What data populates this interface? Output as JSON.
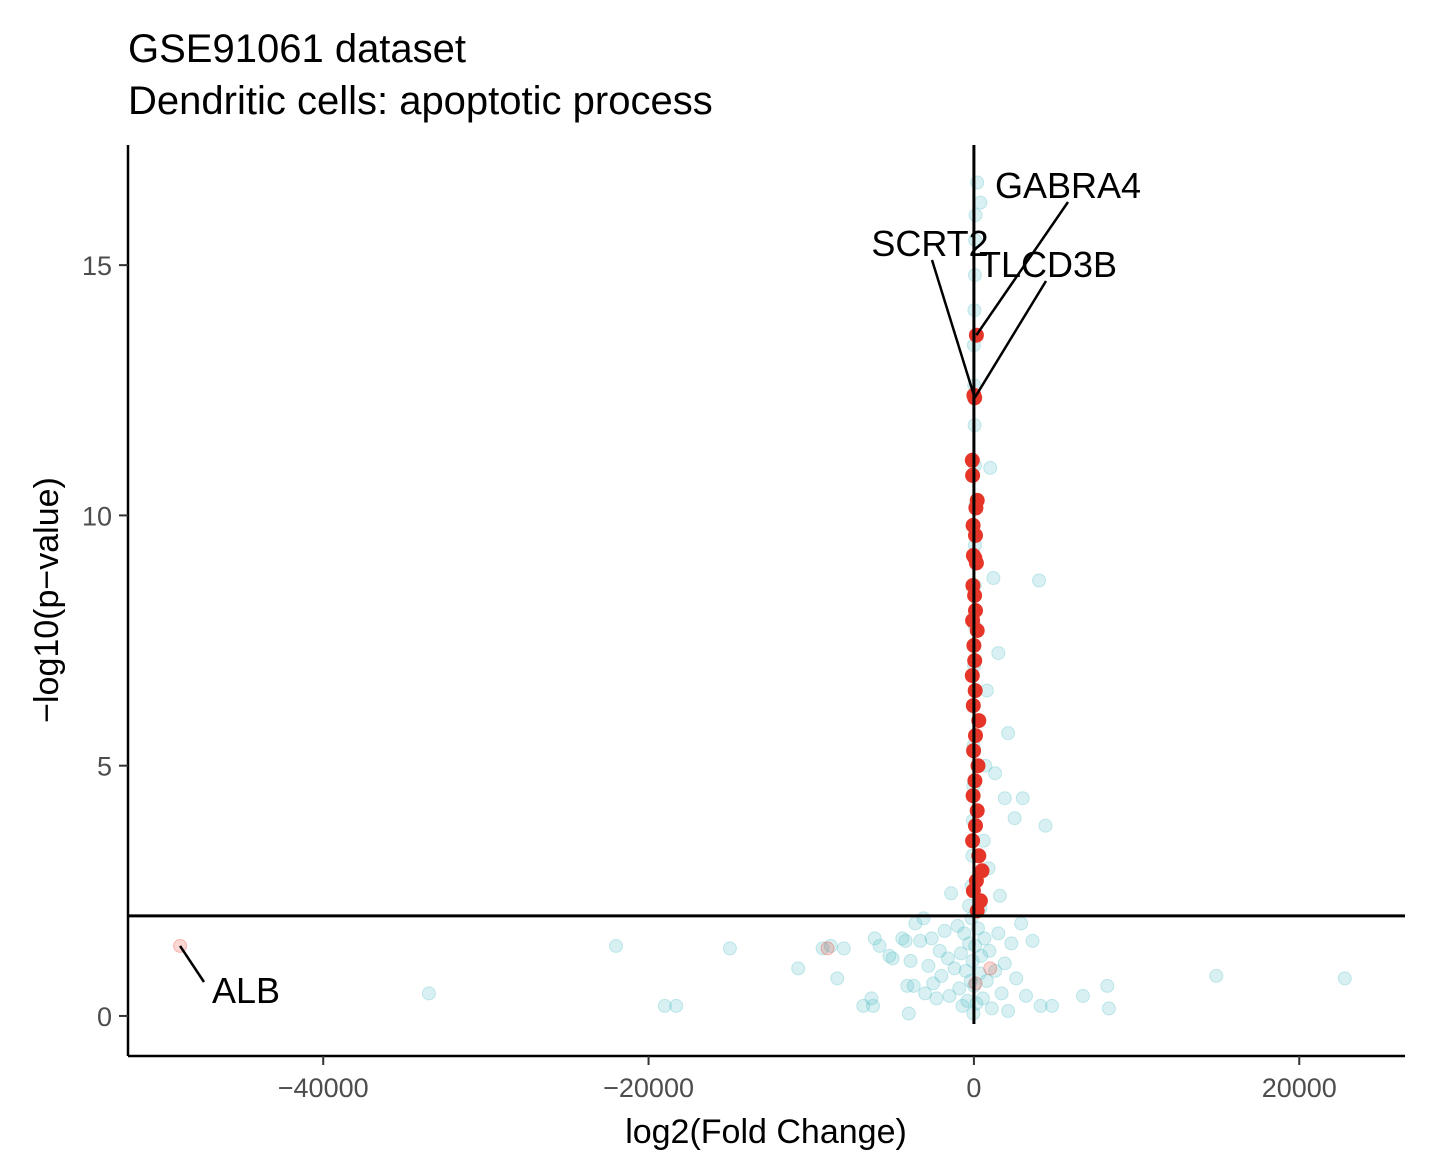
{
  "chart_data": {
    "type": "scatter",
    "title": "GSE91061 dataset",
    "subtitle": "Dendritic cells: apoptotic process",
    "xlabel": "log2(Fold Change)",
    "ylabel": "−log10(p−value)",
    "xlim": [
      -52000,
      26500
    ],
    "ylim": [
      -0.8,
      17.4
    ],
    "x_ticks": [
      -40000,
      -20000,
      0,
      20000
    ],
    "x_tick_labels": [
      "−40000",
      "−20000",
      "0",
      "20000"
    ],
    "y_ticks": [
      0,
      5,
      10,
      15
    ],
    "y_tick_labels": [
      "0",
      "5",
      "10",
      "15"
    ],
    "grid": false,
    "reference_lines": {
      "x": 0,
      "y": 2
    },
    "colors": {
      "significant": "#e53528",
      "not_significant": "#4fbcc4",
      "axis": "#000000"
    },
    "series": [
      {
        "color": "#4fbcc4",
        "points": [
          [
            -33500,
            0.45
          ],
          [
            -22000,
            1.4
          ],
          [
            -19000,
            0.2
          ],
          [
            -18300,
            0.2
          ],
          [
            -15000,
            1.35
          ],
          [
            -10800,
            0.95
          ],
          [
            -9300,
            1.35
          ],
          [
            -8800,
            1.4
          ],
          [
            -8400,
            0.75
          ],
          [
            -8000,
            1.35
          ],
          [
            -6800,
            0.2
          ],
          [
            -6300,
            0.35
          ],
          [
            -6200,
            0.2
          ],
          [
            -6100,
            1.55
          ],
          [
            -5800,
            1.4
          ],
          [
            -5200,
            1.2
          ],
          [
            -5000,
            1.15
          ],
          [
            -4400,
            1.55
          ],
          [
            -4200,
            1.5
          ],
          [
            -4100,
            0.6
          ],
          [
            -4000,
            0.05
          ],
          [
            -3900,
            1.1
          ],
          [
            -3700,
            0.6
          ],
          [
            -3600,
            1.85
          ],
          [
            -3300,
            1.5
          ],
          [
            -3100,
            1.95
          ],
          [
            -3000,
            0.45
          ],
          [
            -2800,
            1.0
          ],
          [
            -2600,
            1.55
          ],
          [
            -2500,
            0.65
          ],
          [
            -2300,
            0.35
          ],
          [
            -2100,
            1.3
          ],
          [
            -2000,
            0.8
          ],
          [
            -1800,
            1.7
          ],
          [
            -1600,
            1.15
          ],
          [
            -1500,
            0.4
          ],
          [
            -1400,
            2.45
          ],
          [
            -1200,
            0.95
          ],
          [
            -1000,
            1.8
          ],
          [
            -900,
            0.55
          ],
          [
            -800,
            1.25
          ],
          [
            -700,
            0.2
          ],
          [
            -600,
            1.65
          ],
          [
            -500,
            0.9
          ],
          [
            -400,
            0.3
          ],
          [
            -300,
            1.45
          ],
          [
            -200,
            0.7
          ],
          [
            -150,
            1.95
          ],
          [
            -80,
            1.1
          ],
          [
            -30,
            0.05
          ],
          [
            20,
            0.6
          ],
          [
            80,
            1.4
          ],
          [
            150,
            0.25
          ],
          [
            250,
            1.75
          ],
          [
            350,
            0.85
          ],
          [
            450,
            1.2
          ],
          [
            550,
            0.35
          ],
          [
            650,
            1.55
          ],
          [
            800,
            0.7
          ],
          [
            950,
            1.3
          ],
          [
            1100,
            0.15
          ],
          [
            1300,
            0.9
          ],
          [
            1500,
            1.65
          ],
          [
            1700,
            0.45
          ],
          [
            1900,
            1.05
          ],
          [
            2100,
            0.1
          ],
          [
            2300,
            1.45
          ],
          [
            2600,
            0.75
          ],
          [
            2900,
            1.85
          ],
          [
            3200,
            0.4
          ],
          [
            3600,
            1.5
          ],
          [
            4100,
            0.2
          ],
          [
            4800,
            0.2
          ],
          [
            6700,
            0.4
          ],
          [
            8200,
            0.6
          ],
          [
            8300,
            0.15
          ],
          [
            14900,
            0.8
          ],
          [
            22800,
            0.75
          ],
          [
            -150,
            2.6
          ],
          [
            -100,
            3.2
          ],
          [
            -60,
            3.9
          ],
          [
            -40,
            4.6
          ],
          [
            -20,
            5.4
          ],
          [
            -10,
            6.2
          ],
          [
            10,
            7.0
          ],
          [
            30,
            7.8
          ],
          [
            50,
            8.6
          ],
          [
            70,
            9.4
          ],
          [
            90,
            10.2
          ],
          [
            60,
            11.0
          ],
          [
            40,
            11.8
          ],
          [
            20,
            12.6
          ],
          [
            0,
            13.4
          ],
          [
            30,
            14.1
          ],
          [
            60,
            14.8
          ],
          [
            80,
            15.5
          ],
          [
            100,
            16.0
          ],
          [
            200,
            16.65
          ],
          [
            400,
            16.25
          ],
          [
            1000,
            10.95
          ],
          [
            1200,
            8.75
          ],
          [
            4000,
            8.7
          ],
          [
            1500,
            7.25
          ],
          [
            800,
            6.5
          ],
          [
            2100,
            5.65
          ],
          [
            700,
            5.0
          ],
          [
            1300,
            4.85
          ],
          [
            1900,
            4.35
          ],
          [
            3000,
            4.35
          ],
          [
            2500,
            3.95
          ],
          [
            4400,
            3.8
          ],
          [
            600,
            3.5
          ],
          [
            900,
            2.95
          ],
          [
            1600,
            2.4
          ],
          [
            -300,
            2.2
          ],
          [
            400,
            2.15
          ]
        ]
      },
      {
        "color": "#e53528",
        "points": [
          [
            -48800,
            1.4
          ],
          [
            -9000,
            1.35
          ],
          [
            100,
            0.65
          ],
          [
            1000,
            0.95
          ],
          [
            150,
            13.6
          ],
          [
            0,
            12.4
          ],
          [
            50,
            12.35
          ],
          [
            -100,
            11.1
          ],
          [
            -80,
            10.8
          ],
          [
            200,
            10.3
          ],
          [
            120,
            10.15
          ],
          [
            -50,
            9.8
          ],
          [
            100,
            9.6
          ],
          [
            -30,
            9.2
          ],
          [
            60,
            9.15
          ],
          [
            150,
            9.05
          ],
          [
            -60,
            8.6
          ],
          [
            40,
            8.4
          ],
          [
            100,
            8.1
          ],
          [
            -80,
            7.9
          ],
          [
            200,
            7.7
          ],
          [
            0,
            7.4
          ],
          [
            50,
            7.1
          ],
          [
            -100,
            6.8
          ],
          [
            80,
            6.5
          ],
          [
            -40,
            6.2
          ],
          [
            300,
            5.9
          ],
          [
            100,
            5.6
          ],
          [
            -20,
            5.3
          ],
          [
            250,
            5.0
          ],
          [
            60,
            4.7
          ],
          [
            -50,
            4.4
          ],
          [
            200,
            4.1
          ],
          [
            100,
            3.8
          ],
          [
            -80,
            3.5
          ],
          [
            300,
            3.2
          ],
          [
            500,
            2.9
          ],
          [
            150,
            2.7
          ],
          [
            -30,
            2.5
          ],
          [
            400,
            2.3
          ],
          [
            200,
            2.1
          ]
        ]
      }
    ],
    "annotations": [
      {
        "label": "GABRA4",
        "x": 150,
        "y": 13.6
      },
      {
        "label": "SCRT2",
        "x": 0,
        "y": 12.4
      },
      {
        "label": "TLCD3B",
        "x": 50,
        "y": 12.35
      },
      {
        "label": "ALB",
        "x": -48800,
        "y": 1.4
      }
    ]
  }
}
